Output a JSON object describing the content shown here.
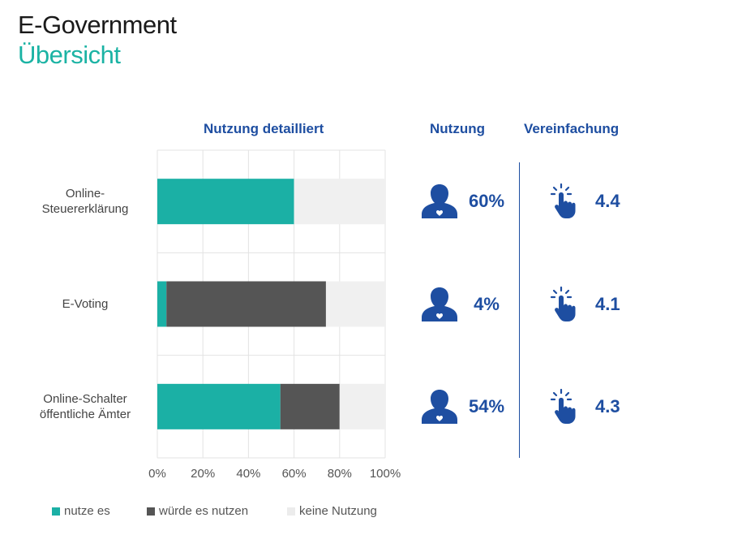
{
  "header": {
    "title": "E-Government",
    "subtitle": "Übersicht"
  },
  "colors": {
    "nutze_es": "#1bb0a5",
    "wuerde_es_nutzen": "#555555",
    "keine_nutzung": "#f0f0f0",
    "accent_blue": "#1e4ea1"
  },
  "columns": {
    "detail": "Nutzung detailliert",
    "usage": "Nutzung",
    "simplification": "Vereinfachung"
  },
  "chart_data": {
    "type": "bar",
    "orientation": "horizontal",
    "stacked": true,
    "categories": [
      "Online-\nSteuererklärung",
      "E-Voting",
      "Online-Schalter\nöffentliche Ämter"
    ],
    "series": [
      {
        "name": "nutze es",
        "values": [
          60,
          4,
          54
        ]
      },
      {
        "name": "würde es nutzen",
        "values": [
          0,
          70,
          26
        ]
      },
      {
        "name": "keine Nutzung",
        "values": [
          40,
          26,
          20
        ]
      }
    ],
    "xlim": [
      0,
      100
    ],
    "xticks": [
      "0%",
      "20%",
      "40%",
      "60%",
      "80%",
      "100%"
    ],
    "grid": true,
    "legend": "bottom"
  },
  "kpis": [
    {
      "usage": "60%",
      "simplification": "4.4"
    },
    {
      "usage": "4%",
      "simplification": "4.1"
    },
    {
      "usage": "54%",
      "simplification": "4.3"
    }
  ],
  "icons": {
    "user": "user-heart-icon",
    "touch": "finger-tap-icon"
  }
}
